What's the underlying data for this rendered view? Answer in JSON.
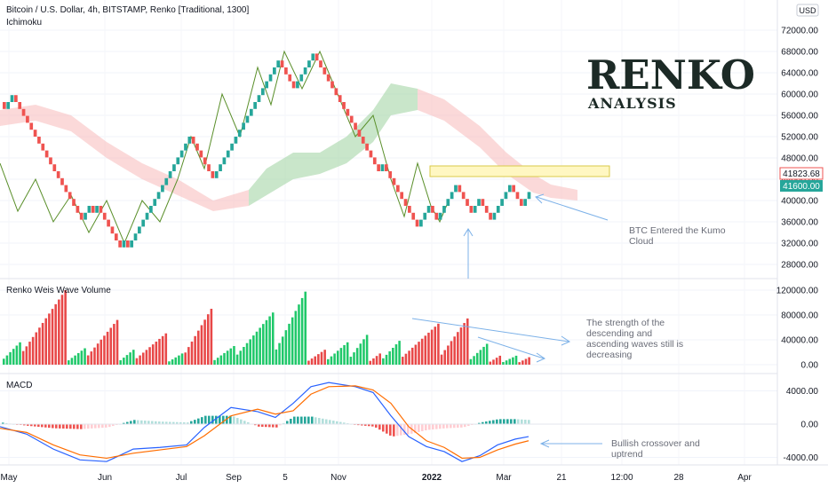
{
  "header": {
    "symbol_title": "Bitcoin / U.S. Dollar, 4h, BITSTAMP, Renko [Traditional, 1300]",
    "indicator": "Ichimoku"
  },
  "currency_badge": "USD",
  "overlay": {
    "title": "RENKO",
    "subtitle": "ANALYSIS"
  },
  "colors": {
    "up": "#26a69a",
    "down": "#ef5350",
    "vol_up": "#20c86a",
    "vol_down": "#e84848",
    "kumo_green": "#a5d6a7",
    "kumo_red": "#f8c0c0",
    "lagging": "#5a8f2a",
    "macd": "#2962ff",
    "signal": "#ff6d00",
    "annotation_arrow": "#7cb1e8",
    "zone_fill": "#fff7c2",
    "zone_stroke": "#d9c94a"
  },
  "panes": {
    "price": {
      "ticks": [
        "72000.00",
        "68000.00",
        "64000.00",
        "60000.00",
        "56000.00",
        "52000.00",
        "48000.00",
        "44000.00",
        "40000.00",
        "36000.00",
        "32000.00",
        "28000.00"
      ],
      "last_price": "41823.68",
      "current_brick": "41600.00"
    },
    "volume": {
      "title": "Renko Weis Wave Volume",
      "ticks": [
        "120000.00",
        "80000.00",
        "40000.00",
        "0.00"
      ]
    },
    "macd": {
      "title": "MACD",
      "ticks": [
        "4000.00",
        "0.00",
        "-4000.00"
      ]
    }
  },
  "x_axis": {
    "labels": [
      "May",
      "Jun",
      "Jul",
      "Sep",
      "5",
      "Nov",
      "2022",
      "Mar",
      "21",
      "12:00",
      "28",
      "Apr"
    ]
  },
  "annotations": {
    "kumo": [
      "BTC Entered the Kumo",
      "Cloud"
    ],
    "waves": [
      "The strength of the",
      "descending and",
      "ascending waves still is",
      "decreasing"
    ],
    "macd": [
      "Bullish crossover and",
      "uptrend"
    ]
  },
  "chart_data": {
    "type": "renko",
    "brick_size": 1300,
    "price_range": [
      24000,
      73000
    ],
    "price_path": [
      58500,
      56000,
      60000,
      58000,
      52000,
      46000,
      42000,
      38000,
      36000,
      39000,
      37000,
      40000,
      36000,
      37500,
      33000,
      34500,
      31000,
      33500,
      31000,
      36000,
      42000,
      47000,
      49000,
      52000,
      44000,
      48000,
      46000,
      54000,
      62000,
      67000,
      64000,
      66000,
      61000,
      65500,
      68000,
      58000,
      54000,
      50000,
      45000,
      47000,
      42000,
      38000,
      34500,
      39000,
      36000,
      43000,
      37000,
      40500,
      35500,
      43000,
      38000,
      41600
    ],
    "kumo_cloud": {
      "top": [
        [
          0,
          57000
        ],
        [
          40,
          58000
        ],
        [
          80,
          56000
        ],
        [
          120,
          51000
        ],
        [
          160,
          47000
        ],
        [
          200,
          44000
        ],
        [
          240,
          40000
        ],
        [
          280,
          42000
        ],
        [
          300,
          46000
        ],
        [
          330,
          49000
        ],
        [
          360,
          49000
        ],
        [
          390,
          52000
        ],
        [
          420,
          57000
        ],
        [
          440,
          62000
        ],
        [
          470,
          61000
        ],
        [
          500,
          59000
        ],
        [
          540,
          54000
        ],
        [
          570,
          49000
        ],
        [
          600,
          45000
        ],
        [
          620,
          43000
        ],
        [
          650,
          42000
        ]
      ],
      "bottom": [
        [
          0,
          54000
        ],
        [
          40,
          55000
        ],
        [
          80,
          53000
        ],
        [
          120,
          48000
        ],
        [
          160,
          44000
        ],
        [
          200,
          41000
        ],
        [
          240,
          38000
        ],
        [
          280,
          39000
        ],
        [
          300,
          41000
        ],
        [
          330,
          44000
        ],
        [
          360,
          45000
        ],
        [
          390,
          47000
        ],
        [
          420,
          51000
        ],
        [
          440,
          56000
        ],
        [
          470,
          57000
        ],
        [
          500,
          55000
        ],
        [
          540,
          50000
        ],
        [
          570,
          45000
        ],
        [
          600,
          41500
        ],
        [
          620,
          40500
        ],
        [
          650,
          40000
        ]
      ],
      "green_segments": [
        [
          280,
          470
        ]
      ],
      "red_segments": [
        [
          0,
          280
        ],
        [
          470,
          650
        ]
      ]
    },
    "lagging_span": [
      [
        0,
        47000
      ],
      [
        20,
        38000
      ],
      [
        40,
        44000
      ],
      [
        60,
        36000
      ],
      [
        80,
        41000
      ],
      [
        100,
        34000
      ],
      [
        120,
        40000
      ],
      [
        140,
        32000
      ],
      [
        160,
        40000
      ],
      [
        180,
        36000
      ],
      [
        200,
        44000
      ],
      [
        215,
        52000
      ],
      [
        230,
        46000
      ],
      [
        250,
        60000
      ],
      [
        270,
        52000
      ],
      [
        290,
        65000
      ],
      [
        305,
        58000
      ],
      [
        320,
        68000
      ],
      [
        340,
        61000
      ],
      [
        360,
        68000
      ],
      [
        380,
        60000
      ],
      [
        400,
        52000
      ],
      [
        420,
        56000
      ],
      [
        440,
        44000
      ],
      [
        455,
        37000
      ],
      [
        470,
        47000
      ],
      [
        485,
        39000
      ],
      [
        495,
        36000
      ],
      [
        505,
        40000
      ]
    ],
    "kumo_entry_zone": {
      "from": 44500,
      "to": 46500
    },
    "weis_waves": [
      {
        "dir": "up",
        "peak": 0.3,
        "n": 6
      },
      {
        "dir": "down",
        "peak": 1.0,
        "n": 14
      },
      {
        "dir": "up",
        "peak": 0.22,
        "n": 6
      },
      {
        "dir": "down",
        "peak": 0.6,
        "n": 10
      },
      {
        "dir": "up",
        "peak": 0.2,
        "n": 5
      },
      {
        "dir": "down",
        "peak": 0.42,
        "n": 10
      },
      {
        "dir": "up",
        "peak": 0.15,
        "n": 5
      },
      {
        "dir": "down",
        "peak": 0.75,
        "n": 9
      },
      {
        "dir": "up",
        "peak": 0.25,
        "n": 7
      },
      {
        "dir": "up",
        "peak": 0.7,
        "n": 12
      },
      {
        "dir": "up",
        "peak": 0.98,
        "n": 10
      },
      {
        "dir": "down",
        "peak": 0.2,
        "n": 6
      },
      {
        "dir": "up",
        "peak": 0.3,
        "n": 7
      },
      {
        "dir": "up",
        "peak": 0.4,
        "n": 6
      },
      {
        "dir": "down",
        "peak": 0.15,
        "n": 4
      },
      {
        "dir": "up",
        "peak": 0.32,
        "n": 6
      },
      {
        "dir": "down",
        "peak": 0.55,
        "n": 12
      },
      {
        "dir": "down",
        "peak": 0.62,
        "n": 9
      },
      {
        "dir": "up",
        "peak": 0.28,
        "n": 6
      },
      {
        "dir": "down",
        "peak": 0.12,
        "n": 4
      },
      {
        "dir": "up",
        "peak": 0.12,
        "n": 5
      },
      {
        "dir": "down",
        "peak": 0.1,
        "n": 4
      }
    ],
    "volume_range": [
      0,
      130000
    ],
    "macd_range": [
      -6000,
      6000
    ],
    "macd_line": [
      [
        0,
        -300
      ],
      [
        30,
        -1200
      ],
      [
        60,
        -3000
      ],
      [
        90,
        -4300
      ],
      [
        120,
        -4500
      ],
      [
        150,
        -3000
      ],
      [
        180,
        -2800
      ],
      [
        210,
        -2500
      ],
      [
        230,
        -400
      ],
      [
        260,
        2000
      ],
      [
        290,
        1500
      ],
      [
        310,
        800
      ],
      [
        330,
        2500
      ],
      [
        350,
        4500
      ],
      [
        370,
        5000
      ],
      [
        400,
        4500
      ],
      [
        420,
        3800
      ],
      [
        440,
        1000
      ],
      [
        460,
        -1500
      ],
      [
        480,
        -2700
      ],
      [
        500,
        -3300
      ],
      [
        520,
        -4500
      ],
      [
        540,
        -3800
      ],
      [
        560,
        -2500
      ],
      [
        580,
        -1800
      ],
      [
        595,
        -1500
      ]
    ],
    "signal_line": [
      [
        0,
        -500
      ],
      [
        30,
        -1000
      ],
      [
        60,
        -2500
      ],
      [
        90,
        -3700
      ],
      [
        120,
        -4100
      ],
      [
        150,
        -3500
      ],
      [
        180,
        -3100
      ],
      [
        210,
        -2700
      ],
      [
        230,
        -1400
      ],
      [
        260,
        1000
      ],
      [
        290,
        1800
      ],
      [
        310,
        1200
      ],
      [
        330,
        1600
      ],
      [
        350,
        3600
      ],
      [
        370,
        4500
      ],
      [
        400,
        4600
      ],
      [
        420,
        4100
      ],
      [
        440,
        2500
      ],
      [
        460,
        -300
      ],
      [
        480,
        -2000
      ],
      [
        500,
        -2800
      ],
      [
        520,
        -4100
      ],
      [
        540,
        -4000
      ],
      [
        560,
        -3100
      ],
      [
        580,
        -2400
      ],
      [
        595,
        -2000
      ]
    ]
  }
}
